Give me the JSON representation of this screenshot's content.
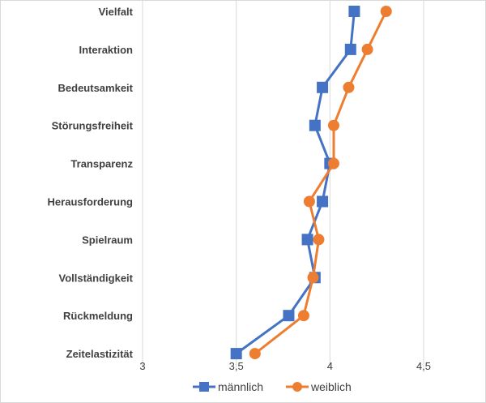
{
  "chart_data": {
    "type": "line",
    "orientation": "horizontal-values",
    "title": "",
    "xlabel": "",
    "ylabel": "",
    "categories": [
      "Vielfalt",
      "Interaktion",
      "Bedeutsamkeit",
      "Störungsfreiheit",
      "Transparenz",
      "Herausforderung",
      "Spielraum",
      "Vollständigkeit",
      "Rückmeldung",
      "Zeitelastizität"
    ],
    "xlim": [
      3,
      4.5
    ],
    "xticks": [
      3,
      3.5,
      4,
      4.5
    ],
    "xtick_labels": [
      "3",
      "3,5",
      "4",
      "4,5"
    ],
    "grid": "vertical",
    "legend_position": "bottom",
    "series": [
      {
        "name": "männlich",
        "color": "#4472c4",
        "marker": "square",
        "values": [
          4.13,
          4.11,
          3.96,
          3.92,
          4.0,
          3.96,
          3.88,
          3.92,
          3.78,
          3.5
        ]
      },
      {
        "name": "weiblich",
        "color": "#ed7d31",
        "marker": "circle",
        "values": [
          4.3,
          4.2,
          4.1,
          4.02,
          4.02,
          3.89,
          3.94,
          3.91,
          3.86,
          3.6
        ]
      }
    ]
  }
}
